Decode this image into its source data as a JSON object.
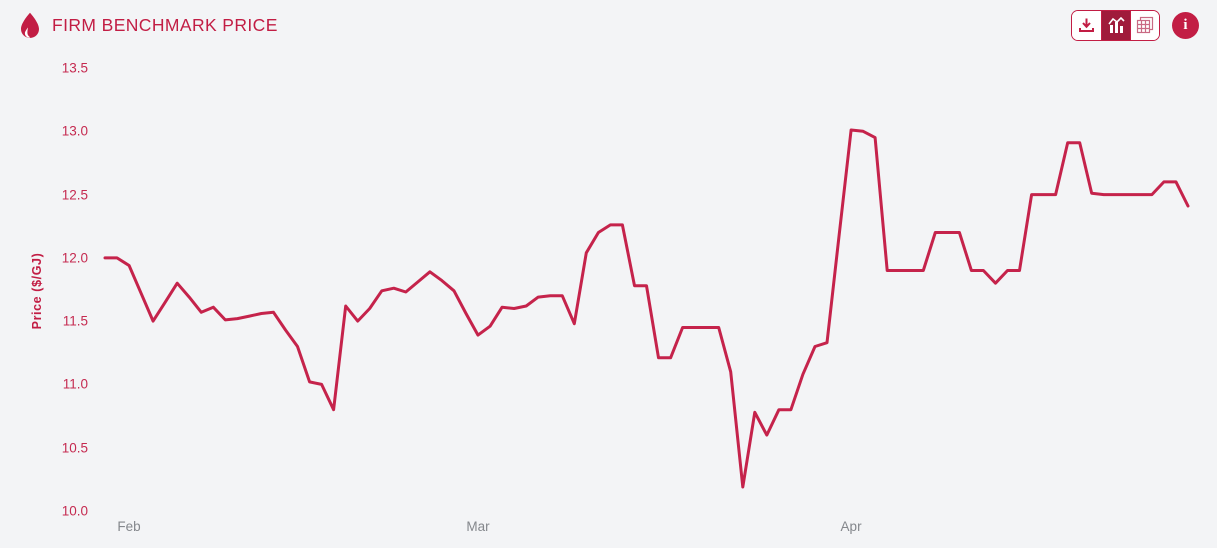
{
  "header": {
    "title": "FIRM BENCHMARK PRICE",
    "info_label": "i",
    "icons": {
      "flame": "flame-icon",
      "download": "download-icon",
      "chart_view": "bar-line-chart-icon",
      "table_view": "data-table-icon",
      "info": "info-icon"
    },
    "active_view": "chart"
  },
  "colors": {
    "primary": "#c21d44",
    "line": "#c5234b",
    "active_button_bg": "#a01b3b",
    "background": "#f3f4f6",
    "x_label": "#84878c"
  },
  "chart_data": {
    "type": "line",
    "title": "FIRM BENCHMARK PRICE",
    "xlabel": "",
    "ylabel": "Price ($/GJ)",
    "ylim": [
      10.0,
      13.5
    ],
    "yticks": [
      13.5,
      13.0,
      12.5,
      12.0,
      11.5,
      11.0,
      10.5,
      10.0
    ],
    "xticks": [
      {
        "label": "Feb",
        "index": 2
      },
      {
        "label": "Mar",
        "index": 31
      },
      {
        "label": "Apr",
        "index": 62
      }
    ],
    "grid": false,
    "legend": false,
    "series": [
      {
        "name": "Firm Benchmark Price ($/GJ)",
        "color": "#c5234b",
        "values": [
          12.0,
          12.0,
          11.94,
          11.72,
          11.5,
          11.65,
          11.8,
          11.69,
          11.57,
          11.61,
          11.51,
          11.52,
          11.54,
          11.56,
          11.57,
          11.43,
          11.3,
          11.02,
          11.0,
          10.8,
          11.62,
          11.5,
          11.6,
          11.74,
          11.76,
          11.73,
          11.81,
          11.89,
          11.82,
          11.74,
          11.56,
          11.39,
          11.46,
          11.61,
          11.6,
          11.62,
          11.69,
          11.7,
          11.7,
          11.48,
          12.04,
          12.2,
          12.26,
          12.26,
          11.78,
          11.78,
          11.21,
          11.21,
          11.45,
          11.45,
          11.45,
          11.45,
          11.1,
          10.19,
          10.78,
          10.6,
          10.8,
          10.8,
          11.08,
          11.3,
          11.33,
          12.17,
          13.01,
          13.0,
          12.95,
          11.9,
          11.9,
          11.9,
          11.9,
          12.2,
          12.2,
          12.2,
          11.9,
          11.9,
          11.8,
          11.9,
          11.9,
          12.5,
          12.5,
          12.5,
          12.91,
          12.91,
          12.51,
          12.5,
          12.5,
          12.5,
          12.5,
          12.5,
          12.6,
          12.6,
          12.41
        ]
      }
    ]
  }
}
